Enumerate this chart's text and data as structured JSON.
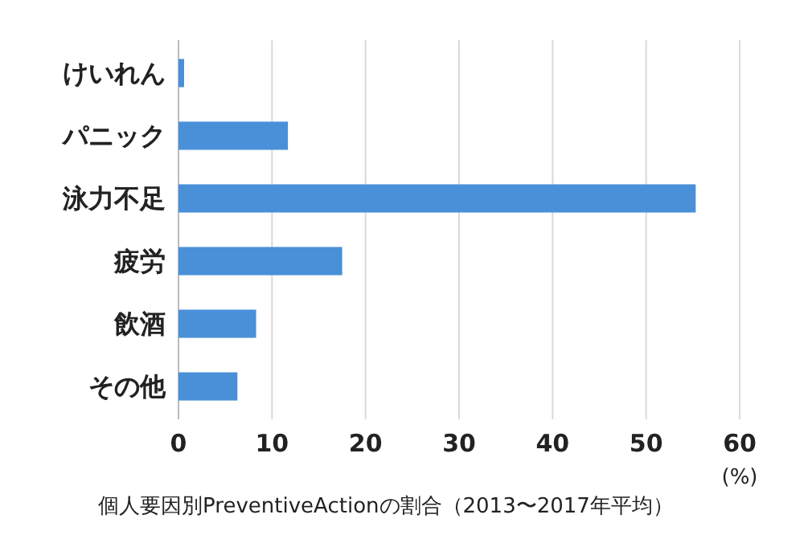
{
  "chart_data": {
    "type": "bar",
    "orientation": "horizontal",
    "title": "個人要因別PreventiveActionの割合（2013〜2017年平均）",
    "xlabel": "(%)",
    "categories": [
      "けいれん",
      "パニック",
      "泳力不足",
      "疲労",
      "飲酒",
      "その他"
    ],
    "values": [
      0.6,
      11.7,
      55.3,
      17.5,
      8.3,
      6.3
    ],
    "color": "#4a90d9",
    "xlim": [
      0,
      60
    ],
    "xticks": [
      0,
      10,
      20,
      30,
      40,
      50,
      60
    ],
    "grid": "x"
  }
}
